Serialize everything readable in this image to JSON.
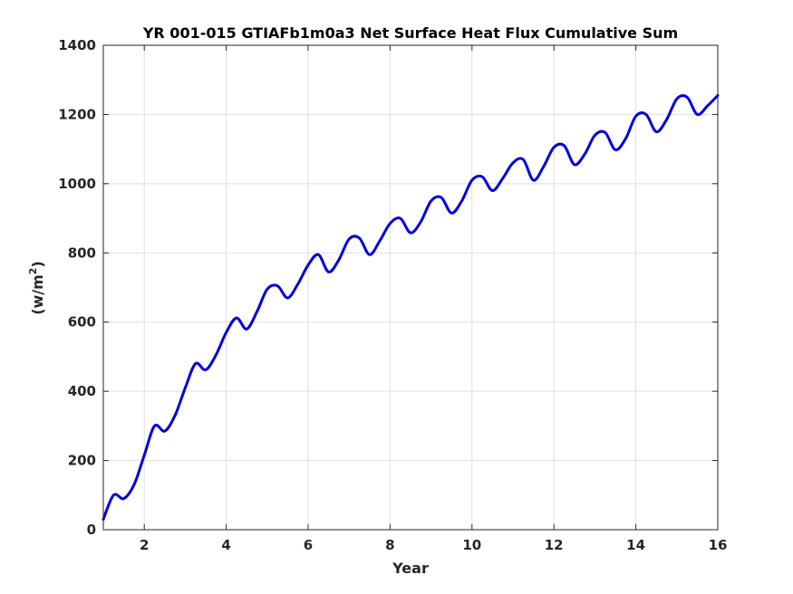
{
  "chart_data": {
    "type": "line",
    "title": "YR 001-015 GTIAFb1m0a3 Net Surface Heat Flux  Cumulative Sum",
    "xlabel": "Year",
    "ylabel": "(w/m",
    "ylabel_superscript": "2",
    "ylabel_close": ")",
    "xlim": [
      1,
      16
    ],
    "ylim": [
      0,
      1400
    ],
    "xticks": [
      2,
      4,
      6,
      8,
      10,
      12,
      14,
      16
    ],
    "yticks": [
      0,
      200,
      400,
      600,
      800,
      1000,
      1200,
      1400
    ],
    "grid": true,
    "line_color": "#0000e0",
    "series": [
      {
        "x": [
          1.0,
          1.25,
          1.5,
          1.75,
          2.0,
          2.25,
          2.5,
          2.75,
          3.0,
          3.25,
          3.5,
          3.75,
          4.0,
          4.25,
          4.5,
          4.75,
          5.0,
          5.25,
          5.5,
          5.75,
          6.0,
          6.25,
          6.5,
          6.75,
          7.0,
          7.25,
          7.5,
          7.75,
          8.0,
          8.25,
          8.5,
          8.75,
          9.0,
          9.25,
          9.5,
          9.75,
          10.0,
          10.25,
          10.5,
          10.75,
          11.0,
          11.25,
          11.5,
          11.75,
          12.0,
          12.25,
          12.5,
          12.75,
          13.0,
          13.25,
          13.5,
          13.75,
          14.0,
          14.25,
          14.5,
          14.75,
          15.0,
          15.25,
          15.5,
          15.75,
          16.0
        ],
        "y": [
          30,
          100,
          90,
          130,
          215,
          300,
          285,
          330,
          410,
          480,
          462,
          505,
          570,
          612,
          580,
          630,
          695,
          705,
          670,
          710,
          765,
          795,
          745,
          780,
          840,
          843,
          795,
          835,
          885,
          900,
          858,
          890,
          950,
          960,
          915,
          950,
          1010,
          1020,
          980,
          1015,
          1060,
          1070,
          1010,
          1050,
          1105,
          1110,
          1055,
          1085,
          1140,
          1148,
          1098,
          1130,
          1195,
          1200,
          1150,
          1185,
          1245,
          1250,
          1200,
          1225,
          1255
        ]
      }
    ]
  }
}
